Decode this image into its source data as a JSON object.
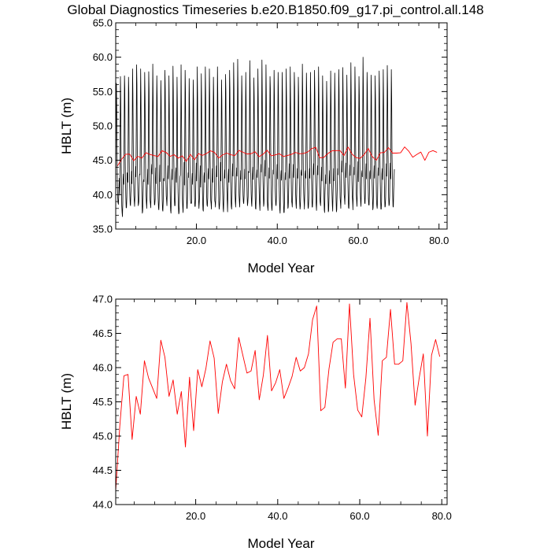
{
  "title": "Global Diagnostics Timeseries b.e20.B1850.f09_g17.pi_control.all.148",
  "colors": {
    "monthly_line": "#000000",
    "annual_line": "#ff0000",
    "frame": "#000000"
  },
  "chart_data": [
    {
      "type": "line",
      "title": "Global Diagnostics Timeseries b.e20.B1850.f09_g17.pi_control.all.148",
      "xlabel": "Model Year",
      "ylabel": "HBLT (m)",
      "xlim": [
        0.04,
        82
      ],
      "ylim": [
        35.0,
        65.0
      ],
      "xticks": [
        20.0,
        40.0,
        60.0,
        80.0
      ],
      "xtick_labels": [
        "20.0",
        "40.0",
        "60.0",
        "80.0"
      ],
      "yticks": [
        35.0,
        40.0,
        45.0,
        50.0,
        55.0,
        60.0,
        65.0
      ],
      "ytick_labels": [
        "35.0",
        "40.0",
        "45.0",
        "50.0",
        "55.0",
        "60.0",
        "65.0"
      ],
      "grid": false,
      "series": [
        {
          "color": "#000000",
          "x_start": 0.04,
          "x_step": 0.0833333,
          "values": [
            41.7,
            49.8,
            56.2,
            52.6,
            45.4,
            41.2,
            39.6,
            38.8,
            38.6,
            39.9,
            41.6,
            42.4,
            40.1,
            47.4,
            57.2,
            53.8,
            45.9,
            41.8,
            38.4,
            37.4,
            36.8,
            38.7,
            42.2,
            43.0,
            41.5,
            48.9,
            57.3,
            55.4,
            46.3,
            42.2,
            39.7,
            38.1,
            38.1,
            39.6,
            43.2,
            42.8,
            41.8,
            48.8,
            57.1,
            54.9,
            45.5,
            41.5,
            39.9,
            38.6,
            38.4,
            40.2,
            41.3,
            43.4,
            41.6,
            49.1,
            58.3,
            54.8,
            47.8,
            42.4,
            39.9,
            39.1,
            38.3,
            39.6,
            42.2,
            44.1,
            42.6,
            49.8,
            58.9,
            56.0,
            46.4,
            42.3,
            40.0,
            38.4,
            38.7,
            39.2,
            42.4,
            43.0,
            42.9,
            49.4,
            58.3,
            54.3,
            46.5,
            42.6,
            39.3,
            37.3,
            37.6,
            39.3,
            41.9,
            42.2,
            41.9,
            50.9,
            57.8,
            54.2,
            47.3,
            42.6,
            40.2,
            38.9,
            38.0,
            39.8,
            42.2,
            43.7,
            41.5,
            49.4,
            57.9,
            55.0,
            46.7,
            42.3,
            39.2,
            38.7,
            38.1,
            40.1,
            43.6,
            44.4,
            43.0,
            50.6,
            59.0,
            54.3,
            46.3,
            43.4,
            40.3,
            38.5,
            38.6,
            39.3,
            42.5,
            43.9,
            41.6,
            49.5,
            57.3,
            54.1,
            45.8,
            41.9,
            39.5,
            38.1,
            37.8,
            39.2,
            42.2,
            44.3,
            41.9,
            49.0,
            56.6,
            53.7,
            47.1,
            42.6,
            39.3,
            37.8,
            37.6,
            39.1,
            42.3,
            42.4,
            42.0,
            49.4,
            58.1,
            55.4,
            47.3,
            42.1,
            39.8,
            39.2,
            38.4,
            40.3,
            42.6,
            44.2,
            42.3,
            48.3,
            57.3,
            53.0,
            44.9,
            42.2,
            39.1,
            37.7,
            37.3,
            39.5,
            42.1,
            43.7,
            42.2,
            49.3,
            58.7,
            55.0,
            46.9,
            43.4,
            39.4,
            38.4,
            38.4,
            40.0,
            43.2,
            43.9,
            41.8,
            47.4,
            57.1,
            53.2,
            44.3,
            40.4,
            38.4,
            37.2,
            37.4,
            39.1,
            41.7,
            42.7,
            42.8,
            48.8,
            58.9,
            53.0,
            46.3,
            42.2,
            39.4,
            38.1,
            37.4,
            39.8,
            41.6,
            44.7,
            41.4,
            48.6,
            58.1,
            54.8,
            46.0,
            42.5,
            40.3,
            38.0,
            38.0,
            39.7,
            42.0,
            43.2,
            42.5,
            48.9,
            56.9,
            53.4,
            45.4,
            41.8,
            39.3,
            38.8,
            38.7,
            38.8,
            42.2,
            43.1,
            41.5,
            49.4,
            56.7,
            53.7,
            45.5,
            42.3,
            39.5,
            38.3,
            38.3,
            39.4,
            42.6,
            44.6,
            42.0,
            48.7,
            58.6,
            54.2,
            46.7,
            43.2,
            39.3,
            38.0,
            38.9,
            39.8,
            42.3,
            44.2,
            41.1,
            48.4,
            57.6,
            53.9,
            45.6,
            41.8,
            39.1,
            37.8,
            37.6,
            40.1,
            42.7,
            43.2,
            41.8,
            50.0,
            58.6,
            54.5,
            46.6,
            43.3,
            39.7,
            38.5,
            38.3,
            39.5,
            43.0,
            43.8,
            42.3,
            49.5,
            58.3,
            54.4,
            45.9,
            42.3,
            39.2,
            38.7,
            37.9,
            40.2,
            42.3,
            43.8,
            41.8,
            50.0,
            57.1,
            54.1,
            45.6,
            41.8,
            39.1,
            38.9,
            38.2,
            39.8,
            42.5,
            44.2,
            42.6,
            49.0,
            58.6,
            54.5,
            46.6,
            41.8,
            39.0,
            37.9,
            38.3,
            39.3,
            42.0,
            44.7,
            42.0,
            48.4,
            56.7,
            53.8,
            46.5,
            41.1,
            39.5,
            38.0,
            37.5,
            40.0,
            42.4,
            43.6,
            42.4,
            49.2,
            57.5,
            55.0,
            47.1,
            42.4,
            40.5,
            39.1,
            37.5,
            40.1,
            42.8,
            43.7,
            41.8,
            49.5,
            58.1,
            55.1,
            46.7,
            42.3,
            39.6,
            38.3,
            37.9,
            39.5,
            43.0,
            44.5,
            42.7,
            49.6,
            59.2,
            55.3,
            46.4,
            43.4,
            40.5,
            39.0,
            38.2,
            40.2,
            42.8,
            43.9,
            42.7,
            50.2,
            59.7,
            55.4,
            46.9,
            42.7,
            39.9,
            39.0,
            38.2,
            40.1,
            42.3,
            43.5,
            42.2,
            49.0,
            57.3,
            54.3,
            46.6,
            42.5,
            39.9,
            38.9,
            38.7,
            39.9,
            42.0,
            43.7,
            42.3,
            49.1,
            57.8,
            53.6,
            46.1,
            43.2,
            39.9,
            38.4,
            38.8,
            39.7,
            43.4,
            43.2,
            43.2,
            50.1,
            59.5,
            55.2,
            46.2,
            43.0,
            40.2,
            38.8,
            38.3,
            40.5,
            43.0,
            44.0,
            42.2,
            49.3,
            57.0,
            54.1,
            46.4,
            42.8,
            39.6,
            38.0,
            37.9,
            40.0,
            42.8,
            43.6,
            42.5,
            49.0,
            58.3,
            54.0,
            45.8,
            42.2,
            40.1,
            38.6,
            37.7,
            39.6,
            42.4,
            44.4,
            43.3,
            50.6,
            59.6,
            54.8,
            46.7,
            42.6,
            40.2,
            38.3,
            38.7,
            40.6,
            43.4,
            45.0,
            42.7,
            49.5,
            58.9,
            54.3,
            46.2,
            42.6,
            39.0,
            38.2,
            37.7,
            39.5,
            42.2,
            43.9,
            42.4,
            48.8,
            57.2,
            55.4,
            47.5,
            42.3,
            39.3,
            38.0,
            37.7,
            39.8,
            41.8,
            43.6,
            43.0,
            49.3,
            58.1,
            54.3,
            46.9,
            41.5,
            39.9,
            38.6,
            38.4,
            39.7,
            43.1,
            44.4,
            42.3,
            49.8,
            57.8,
            54.5,
            46.6,
            41.6,
            39.3,
            37.8,
            37.3,
            40.3,
            42.8,
            43.5,
            42.1,
            48.4,
            57.8,
            54.6,
            45.6,
            41.9,
            39.0,
            37.4,
            37.4,
            39.0,
            42.0,
            43.2,
            42.2,
            48.9,
            58.3,
            53.9,
            46.0,
            42.5,
            40.2,
            38.0,
            38.2,
            39.6,
            42.7,
            44.5,
            42.4,
            49.5,
            58.6,
            53.9,
            47.6,
            41.9,
            39.0,
            38.8,
            38.2,
            39.9,
            42.8,
            44.4,
            42.5,
            49.7,
            57.8,
            55.6,
            46.9,
            43.3,
            40.2,
            38.7,
            38.0,
            40.0,
            42.2,
            43.8,
            42.4,
            48.0,
            57.1,
            54.4,
            45.4,
            41.6,
            39.0,
            37.9,
            38.3,
            40.0,
            43.2,
            43.6,
            42.8,
            49.4,
            59.0,
            55.1,
            47.3,
            42.2,
            40.2,
            39.0,
            37.9,
            39.9,
            43.0,
            43.5,
            42.4,
            49.5,
            57.7,
            54.6,
            46.2,
            41.8,
            39.4,
            38.0,
            38.2,
            39.4,
            42.6,
            43.8,
            42.4,
            49.5,
            57.8,
            53.7,
            45.8,
            42.5,
            39.6,
            38.2,
            38.2,
            39.9,
            43.4,
            44.5,
            42.9,
            50.7,
            58.1,
            54.7,
            46.6,
            43.3,
            40.1,
            38.5,
            37.7,
            39.6,
            42.4,
            44.2,
            42.9,
            49.9,
            58.6,
            54.5,
            46.8,
            42.4,
            39.4,
            38.8,
            38.4,
            39.7,
            42.2,
            44.0,
            42.0,
            48.9,
            57.3,
            53.5,
            45.6,
            42.1,
            39.8,
            37.8,
            37.4,
            40.0,
            41.6,
            42.9,
            41.6,
            48.7,
            56.5,
            53.0,
            45.8,
            41.6,
            39.8,
            37.5,
            37.7,
            39.6,
            42.5,
            43.5,
            41.6,
            49.6,
            58.0,
            53.9,
            47.3,
            42.5,
            40.1,
            38.4,
            37.6,
            40.2,
            42.1,
            43.8,
            42.0,
            49.3,
            57.7,
            53.9,
            46.2,
            42.3,
            39.3,
            37.5,
            37.8,
            40.0,
            42.0,
            43.8,
            42.9,
            50.5,
            58.2,
            55.0,
            46.3,
            42.8,
            39.6,
            38.8,
            38.0,
            40.3,
            43.2,
            44.9,
            43.3,
            49.9,
            58.5,
            54.2,
            47.4,
            43.0,
            40.0,
            39.5,
            38.6,
            40.5,
            43.2,
            44.6,
            42.5,
            48.6,
            57.4,
            53.3,
            46.2,
            42.0,
            39.8,
            38.1,
            38.0,
            39.3,
            42.4,
            44.3,
            42.8,
            50.9,
            59.2,
            54.5,
            46.8,
            42.4,
            39.8,
            39.2,
            37.8,
            40.4,
            42.6,
            44.0,
            42.9,
            49.4,
            58.6,
            54.8,
            47.2,
            42.7,
            40.0,
            39.2,
            38.3,
            40.0,
            42.9,
            44.8,
            41.9,
            49.0,
            57.2,
            54.5,
            47.1,
            42.8,
            40.2,
            38.9,
            38.3,
            40.6,
            43.1,
            43.5,
            42.6,
            50.5,
            60.0,
            55.4,
            48.1,
            43.1,
            40.5,
            38.8,
            38.7,
            40.2,
            43.2,
            44.5,
            42.3,
            48.7,
            57.8,
            55.0,
            46.8,
            42.2,
            39.4,
            38.5,
            38.5,
            40.3,
            43.2,
            43.5,
            42.3,
            49.2,
            57.4,
            54.3,
            45.5,
            41.8,
            39.7,
            37.8,
            38.1,
            40.0,
            43.0,
            44.2,
            42.4,
            48.9,
            57.3,
            53.8,
            46.5,
            42.1,
            39.2,
            38.4,
            38.0,
            39.0,
            42.6,
            43.9,
            42.8,
            49.5,
            58.0,
            54.8,
            46.3,
            42.0,
            39.7,
            37.9,
            37.9,
            39.0,
            43.0,
            43.8,
            42.2,
            49.3,
            58.2,
            53.9,
            46.5,
            42.7,
            39.8,
            38.2,
            38.3,
            39.4,
            42.1,
            44.5,
            42.7,
            49.4,
            58.8,
            55.1,
            46.9,
            42.8,
            39.6,
            38.4,
            38.6,
            39.8,
            43.3,
            44.6,
            42.3,
            49.5,
            58.2,
            54.1,
            46.0,
            42.4,
            40.1,
            38.3,
            38.2,
            40.5,
            42.2,
            43.7
          ]
        },
        {
          "color": "#ff0000",
          "x_start": 0.5,
          "x_step": 1,
          "values": [
            44.2,
            45.15,
            45.88,
            45.9,
            44.95,
            45.58,
            45.32,
            46.1,
            45.85,
            45.7,
            45.55,
            46.4,
            46.15,
            45.58,
            45.82,
            45.32,
            45.65,
            44.84,
            45.86,
            45.08,
            45.97,
            45.72,
            45.99,
            46.39,
            46.14,
            45.33,
            45.79,
            46.05,
            45.81,
            45.69,
            46.44,
            46.18,
            45.92,
            45.95,
            46.25,
            45.53,
            45.89,
            46.47,
            45.66,
            45.78,
            45.97,
            45.55,
            45.7,
            45.87,
            46.15,
            45.95,
            46.0,
            46.2,
            46.7,
            46.9,
            45.37,
            45.42,
            45.98,
            46.37,
            46.42,
            46.42,
            45.7,
            46.93,
            45.9,
            45.38,
            45.28,
            45.85,
            46.72,
            45.53,
            45.01,
            46.1,
            46.15,
            46.85,
            46.05,
            46.05,
            46.1,
            46.95,
            46.35,
            45.45,
            45.85,
            46.2,
            45.0,
            46.18,
            46.41,
            46.16
          ]
        }
      ]
    },
    {
      "type": "line",
      "xlabel": "Model Year",
      "ylabel": "HBLT (m)",
      "xlim": [
        0.5,
        81.3
      ],
      "ylim": [
        44.0,
        47.0
      ],
      "xticks": [
        20.0,
        40.0,
        60.0,
        80.0
      ],
      "xtick_labels": [
        "20.0",
        "40.0",
        "60.0",
        "80.0"
      ],
      "yticks": [
        44.0,
        44.5,
        45.0,
        45.5,
        46.0,
        46.5,
        47.0
      ],
      "ytick_labels": [
        "44.0",
        "44.5",
        "45.0",
        "45.5",
        "46.0",
        "46.5",
        "47.0"
      ],
      "grid": false,
      "series": [
        {
          "color": "#ff0000",
          "x_start": 0.5,
          "x_step": 1,
          "values": [
            44.2,
            45.15,
            45.88,
            45.9,
            44.95,
            45.58,
            45.32,
            46.1,
            45.85,
            45.7,
            45.55,
            46.4,
            46.15,
            45.58,
            45.82,
            45.32,
            45.65,
            44.84,
            45.86,
            45.08,
            45.97,
            45.72,
            45.99,
            46.39,
            46.14,
            45.33,
            45.79,
            46.05,
            45.81,
            45.69,
            46.44,
            46.18,
            45.92,
            45.95,
            46.25,
            45.53,
            45.89,
            46.47,
            45.66,
            45.78,
            45.97,
            45.55,
            45.7,
            45.87,
            46.15,
            45.95,
            46.0,
            46.2,
            46.7,
            46.9,
            45.37,
            45.42,
            45.98,
            46.37,
            46.42,
            46.42,
            45.7,
            46.93,
            45.9,
            45.38,
            45.28,
            45.85,
            46.72,
            45.53,
            45.01,
            46.1,
            46.15,
            46.85,
            46.05,
            46.05,
            46.1,
            46.95,
            46.35,
            45.45,
            45.85,
            46.2,
            45.0,
            46.18,
            46.41,
            46.16
          ]
        }
      ]
    }
  ]
}
